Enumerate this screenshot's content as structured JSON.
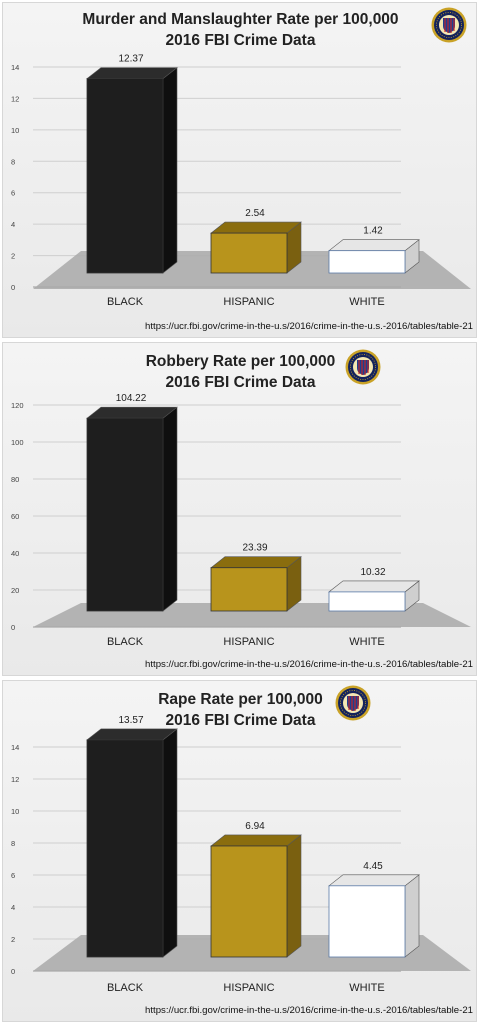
{
  "chart_data": [
    {
      "type": "bar",
      "title": "Murder and Manslaughter Rate per 100,000",
      "subtitle": "2016 FBI Crime Data",
      "categories": [
        "BLACK",
        "HISPANIC",
        "WHITE"
      ],
      "values": [
        12.37,
        2.54,
        1.42
      ],
      "value_labels": [
        "12.37",
        "2.54",
        "1.42"
      ],
      "yticks": [
        "0",
        "2",
        "4",
        "6",
        "8",
        "10",
        "12",
        "14"
      ],
      "ylim": [
        0,
        14
      ],
      "grid": true,
      "source": "https://ucr.fbi.gov/crime-in-the-u.s/2016/crime-in-the-u.s.-2016/tables/table-21",
      "colors": [
        "#1e1e1e",
        "#b8941c",
        "#ffffff"
      ]
    },
    {
      "type": "bar",
      "title": "Robbery Rate per 100,000",
      "subtitle": "2016 FBI Crime Data",
      "categories": [
        "BLACK",
        "HISPANIC",
        "WHITE"
      ],
      "values": [
        104.22,
        23.39,
        10.32
      ],
      "value_labels": [
        "104.22",
        "23.39",
        "10.32"
      ],
      "yticks": [
        "0",
        "20",
        "40",
        "60",
        "80",
        "100",
        "120"
      ],
      "ylim": [
        0,
        120
      ],
      "grid": true,
      "source": "https://ucr.fbi.gov/crime-in-the-u.s/2016/crime-in-the-u.s.-2016/tables/table-21",
      "colors": [
        "#1e1e1e",
        "#b8941c",
        "#ffffff"
      ]
    },
    {
      "type": "bar",
      "title": "Rape Rate per 100,000",
      "subtitle": "2016 FBI Crime Data",
      "categories": [
        "BLACK",
        "HISPANIC",
        "WHITE"
      ],
      "values": [
        13.57,
        6.94,
        4.45
      ],
      "value_labels": [
        "13.57",
        "6.94",
        "4.45"
      ],
      "yticks": [
        "0",
        "2",
        "4",
        "6",
        "8",
        "10",
        "12",
        "14"
      ],
      "ylim": [
        0,
        14
      ],
      "grid": true,
      "source": "https://ucr.fbi.gov/crime-in-the-u.s/2016/crime-in-the-u.s.-2016/tables/table-21",
      "colors": [
        "#1e1e1e",
        "#b8941c",
        "#ffffff"
      ]
    }
  ],
  "icons": {
    "seal": "fbi-seal-icon"
  }
}
